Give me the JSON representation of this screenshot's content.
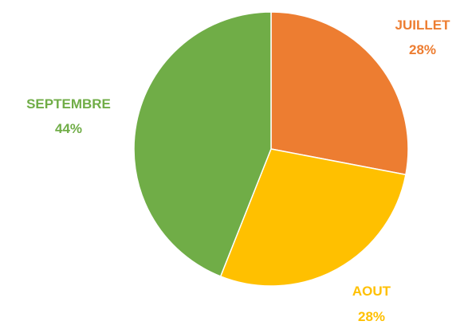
{
  "chart_data": {
    "type": "pie",
    "title": "",
    "start_position": "top",
    "direction": "clockwise",
    "slices": [
      {
        "label": "JUILLET",
        "value": 28,
        "percent_text": "28%",
        "color": "#ED7D31",
        "label_position": "top-right"
      },
      {
        "label": "AOUT",
        "value": 28,
        "percent_text": "28%",
        "color": "#FFC000",
        "label_position": "bottom-right"
      },
      {
        "label": "SEPTEMBRE",
        "value": 44,
        "percent_text": "44%",
        "color": "#70AD47",
        "label_position": "left"
      }
    ],
    "legend": "none",
    "data_labels": "category and percent, outside"
  }
}
